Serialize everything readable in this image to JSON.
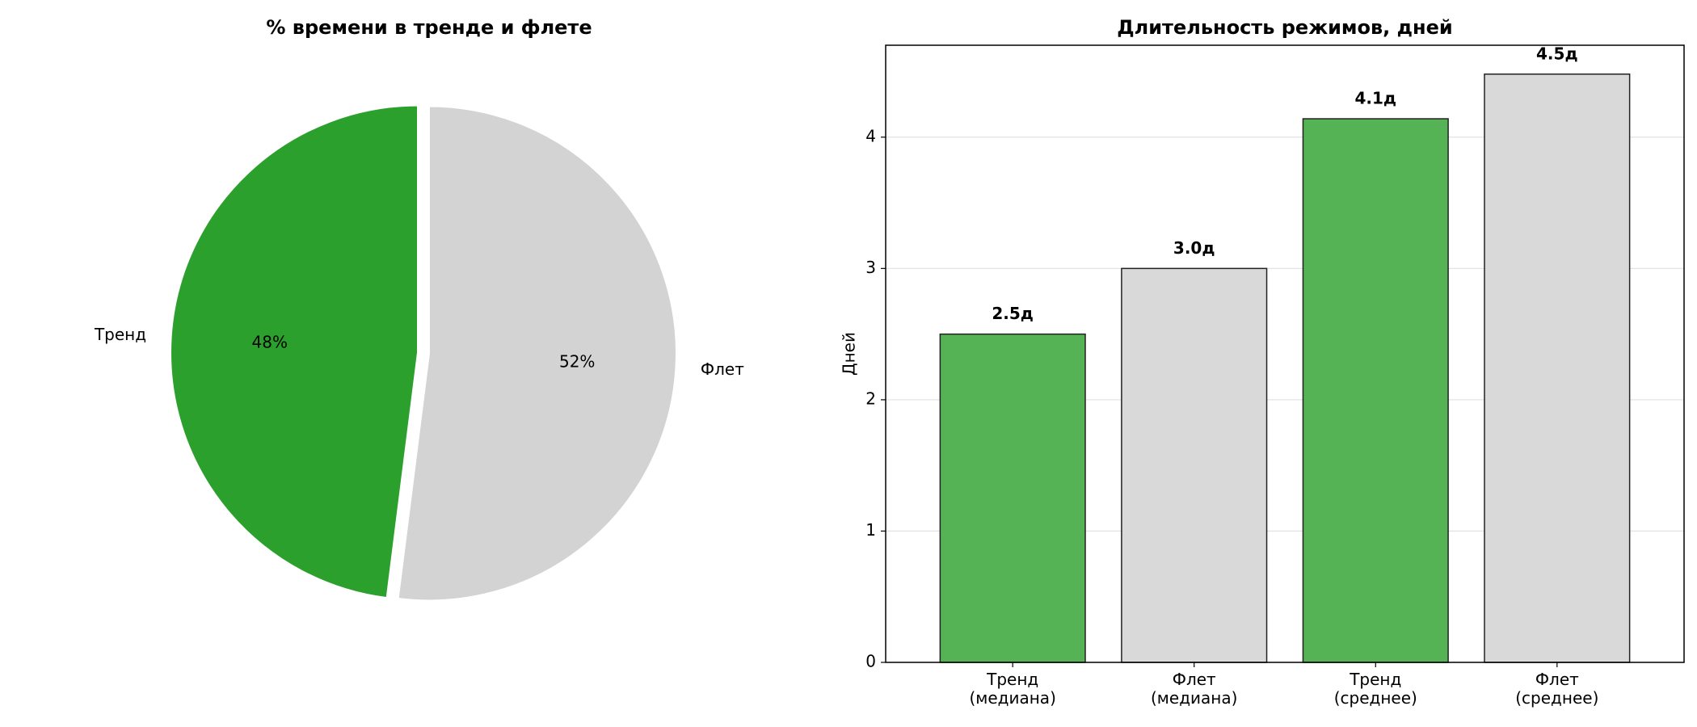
{
  "chart_data": [
    {
      "type": "pie",
      "title": "% времени в тренде и флете",
      "categories": [
        "Тренд",
        "Флет"
      ],
      "values": [
        48,
        52
      ],
      "value_labels": [
        "48%",
        "52%"
      ],
      "colors": [
        "#2ca02c",
        "#d3d3d3"
      ]
    },
    {
      "type": "bar",
      "title": "Длительность режимов, дней",
      "y_label": "Дней",
      "categories": [
        "Тренд\n(медиана)",
        "Флет\n(медиана)",
        "Тренд\n(среднее)",
        "Флет\n(среднее)"
      ],
      "values": [
        2.5,
        3.0,
        4.14,
        4.48
      ],
      "value_labels": [
        "2.5д",
        "3.0д",
        "4.1д",
        "4.5д"
      ],
      "colors": [
        "#55b255",
        "#d9d9d9",
        "#55b255",
        "#d9d9d9"
      ],
      "ylim": [
        0,
        4.7
      ],
      "yticks": [
        0,
        1,
        2,
        3,
        4
      ],
      "grid": true
    }
  ]
}
